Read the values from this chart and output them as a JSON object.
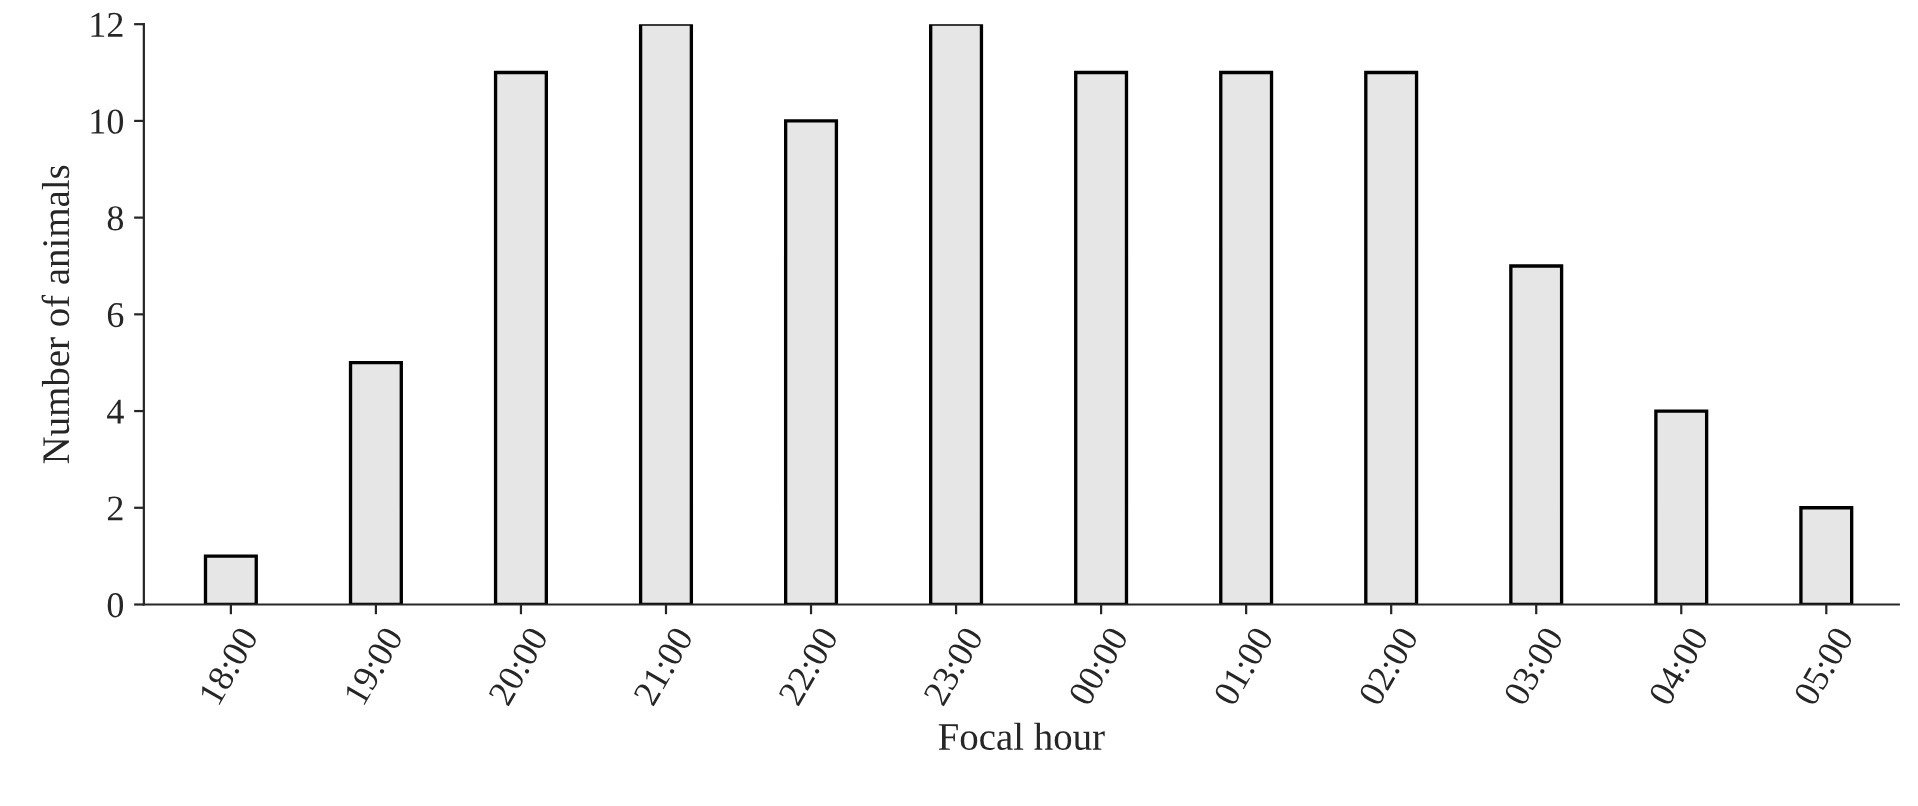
{
  "chart_data": {
    "type": "bar",
    "xlabel": "Focal hour",
    "ylabel": "Number of animals",
    "categories": [
      "18:00",
      "19:00",
      "20:00",
      "21:00",
      "22:00",
      "23:00",
      "00:00",
      "01:00",
      "02:00",
      "03:00",
      "04:00",
      "05:00"
    ],
    "values": [
      1,
      5,
      11,
      12,
      10,
      12,
      11,
      11,
      11,
      7,
      4,
      2
    ],
    "color": "#e6e6e6",
    "ylim": [
      0,
      12
    ],
    "yticks": [
      0,
      2,
      4,
      6,
      8,
      10,
      12
    ],
    "grid": false
  }
}
